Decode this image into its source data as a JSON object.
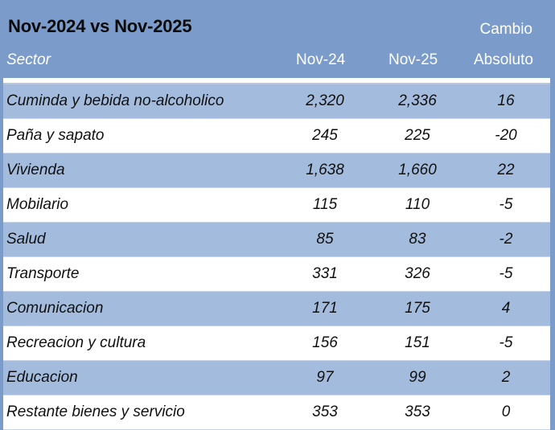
{
  "title": "Nov-2024 vs Nov-2025",
  "header": {
    "cambio": "Cambio",
    "sector": "Sector",
    "nov24": "Nov-24",
    "nov25": "Nov-25",
    "absoluto": "Absoluto"
  },
  "rows": [
    {
      "sector": "Cuminda y bebida no-alcoholico",
      "nov24": "2,320",
      "nov25": "2,336",
      "abs": "16"
    },
    {
      "sector": "Paña y sapato",
      "nov24": "245",
      "nov25": "225",
      "abs": "-20"
    },
    {
      "sector": "Vivienda",
      "nov24": "1,638",
      "nov25": "1,660",
      "abs": "22"
    },
    {
      "sector": "Mobilario",
      "nov24": "115",
      "nov25": "110",
      "abs": "-5"
    },
    {
      "sector": "Salud",
      "nov24": "85",
      "nov25": "83",
      "abs": "-2"
    },
    {
      "sector": "Transporte",
      "nov24": "331",
      "nov25": "326",
      "abs": "-5"
    },
    {
      "sector": "Comunicacion",
      "nov24": "171",
      "nov25": "175",
      "abs": "4"
    },
    {
      "sector": "Recreacion y cultura",
      "nov24": "156",
      "nov25": "151",
      "abs": "-5"
    },
    {
      "sector": "Educacion",
      "nov24": "97",
      "nov25": "99",
      "abs": "2"
    },
    {
      "sector": "Restante bienes y servicio",
      "nov24": "353",
      "nov25": "353",
      "abs": "0"
    }
  ],
  "colors": {
    "background": "#7b9ccb",
    "row_shaded": "#a3bbdc",
    "row_plain": "#ffffff",
    "header_text": "#ffffff"
  }
}
